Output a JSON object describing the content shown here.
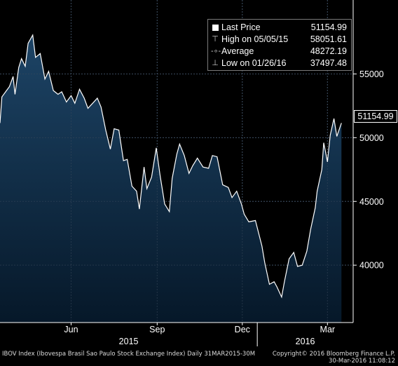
{
  "chart_data": {
    "type": "area",
    "title": "IBOV Index (Ibovespa Brasil Sao Paulo Stock Exchange Index)  Daily 31MAR2015-30M",
    "x_tick_labels": [
      "Jun",
      "Sep",
      "Dec",
      "Mar"
    ],
    "x_year_labels": [
      "2015",
      "2016"
    ],
    "y_tick_labels": [
      "55000",
      "50000",
      "45000",
      "40000"
    ],
    "ylim": [
      35500,
      60800
    ],
    "grid": true,
    "legend_position": "top-right",
    "series": [
      {
        "name": "IBOV Index",
        "x": [
          "2015-03-31",
          "2015-04-02",
          "2015-04-07",
          "2015-04-10",
          "2015-04-14",
          "2015-04-16",
          "2015-04-20",
          "2015-04-23",
          "2015-04-27",
          "2015-04-30",
          "2015-05-05",
          "2015-05-08",
          "2015-05-13",
          "2015-05-18",
          "2015-05-22",
          "2015-05-27",
          "2015-06-01",
          "2015-06-05",
          "2015-06-10",
          "2015-06-15",
          "2015-06-19",
          "2015-06-24",
          "2015-06-29",
          "2015-07-03",
          "2015-07-08",
          "2015-07-13",
          "2015-07-17",
          "2015-07-22",
          "2015-07-27",
          "2015-07-31",
          "2015-08-05",
          "2015-08-10",
          "2015-08-14",
          "2015-08-19",
          "2015-08-24",
          "2015-08-27",
          "2015-09-01",
          "2015-09-04",
          "2015-09-09",
          "2015-09-14",
          "2015-09-18",
          "2015-09-23",
          "2015-09-28",
          "2015-10-01",
          "2015-10-06",
          "2015-10-09",
          "2015-10-14",
          "2015-10-19",
          "2015-10-23",
          "2015-10-28",
          "2015-11-03",
          "2015-11-09",
          "2015-11-13",
          "2015-11-18",
          "2015-11-24",
          "2015-11-30",
          "2015-12-04",
          "2015-12-09",
          "2015-12-14",
          "2015-12-17",
          "2015-12-22",
          "2015-12-29",
          "2016-01-05",
          "2016-01-08",
          "2016-01-13",
          "2016-01-18",
          "2016-01-21",
          "2016-01-26",
          "2016-01-29",
          "2016-02-03",
          "2016-02-08",
          "2016-02-12",
          "2016-02-17",
          "2016-02-22",
          "2016-02-26",
          "2016-03-02",
          "2016-03-04",
          "2016-03-09",
          "2016-03-11",
          "2016-03-15",
          "2016-03-18",
          "2016-03-22",
          "2016-03-25",
          "2016-03-30"
        ],
        "values": [
          51150,
          53200,
          53700,
          54000,
          54800,
          53400,
          55500,
          56200,
          55600,
          57400,
          58051,
          56300,
          56600,
          54600,
          55200,
          53700,
          53400,
          53600,
          52800,
          53300,
          52700,
          53800,
          53100,
          52300,
          52700,
          53100,
          52400,
          50600,
          49100,
          50700,
          50600,
          48200,
          48300,
          46200,
          45800,
          44400,
          47700,
          46000,
          46900,
          49200,
          47100,
          44800,
          44200,
          46800,
          48700,
          49500,
          48600,
          47200,
          47800,
          48400,
          47700,
          47600,
          48600,
          48500,
          46300,
          46100,
          45300,
          45800,
          44800,
          44000,
          43400,
          43500,
          41500,
          40200,
          38500,
          38700,
          38300,
          37497,
          38700,
          40500,
          41000,
          39900,
          40000,
          41100,
          42800,
          44500,
          45800,
          47500,
          49600,
          48100,
          50200,
          51500,
          50100,
          51155
        ]
      }
    ],
    "legend": [
      {
        "label": "Last Price",
        "value": "51154.99"
      },
      {
        "label": "High on 05/05/15",
        "value": "58051.61"
      },
      {
        "label": "Average",
        "value": "48272.19"
      },
      {
        "label": "Low on 01/26/16",
        "value": "37497.48"
      }
    ],
    "last_price_label": "51154.99"
  },
  "footer": {
    "description": "IBOV Index (Ibovespa Brasil Sao Paulo Stock Exchange Index)  Daily 31MAR2015-30M",
    "copyright": "Copyright© 2016 Bloomberg Finance L.P.",
    "timestamp": "30-Mar-2016 11:08:12"
  },
  "colors": {
    "area_top": "#1d4466",
    "area_bottom": "#061829",
    "line": "#ffffff",
    "grid": "#3a4a5c",
    "background": "#000000"
  }
}
